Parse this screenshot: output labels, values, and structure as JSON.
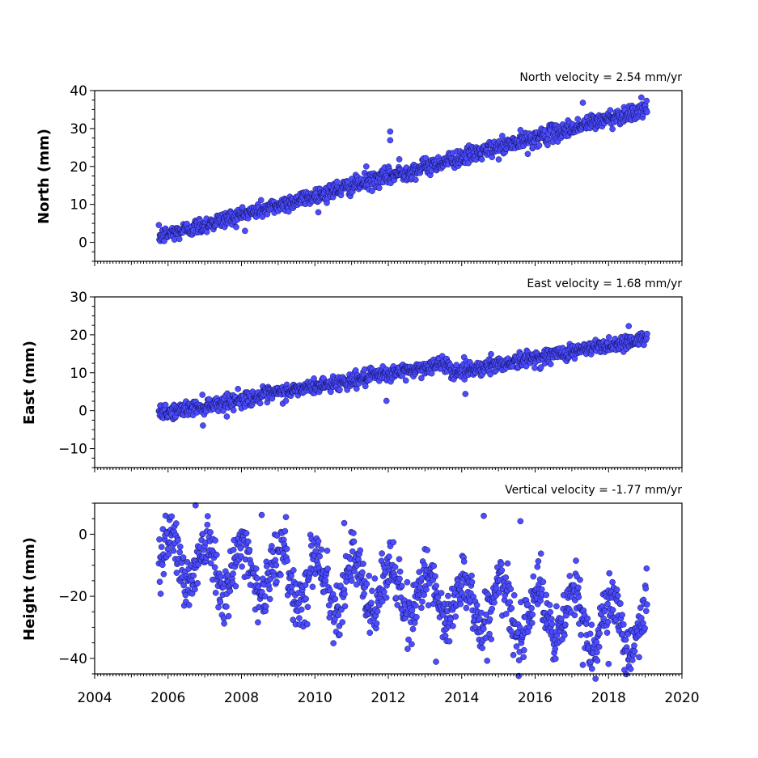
{
  "colors": {
    "marker": "#4c4cff",
    "marker_edge": "#000033",
    "axes": "#000000",
    "background": "#ffffff"
  },
  "chart_data": [
    {
      "type": "scatter",
      "title": "North velocity = 2.54 mm/yr",
      "ylabel": "North (mm)",
      "xlabel": "",
      "xlim": [
        2004,
        2020
      ],
      "ylim": [
        -5,
        40
      ],
      "yticks": [
        0,
        10,
        20,
        30,
        40
      ],
      "xticks": [
        2004,
        2006,
        2008,
        2010,
        2012,
        2014,
        2016,
        2018,
        2020
      ],
      "show_xtick_labels": false,
      "grid": false,
      "data_range": [
        2005.75,
        2019.05
      ],
      "trend": {
        "intercept_at_start": 1.5,
        "slope_mm_per_yr": 2.54
      },
      "scatter_sd": 1.1,
      "outliers": [
        [
          2012.05,
          29.2
        ],
        [
          2012.05,
          26.9
        ],
        [
          2017.3,
          36.8
        ],
        [
          2011.4,
          20.0
        ],
        [
          2010.6,
          16.0
        ],
        [
          2015.8,
          23.3
        ],
        [
          2012.3,
          21.9
        ]
      ],
      "marker_color": "#4c4cff"
    },
    {
      "type": "scatter",
      "title": "East velocity = 1.68 mm/yr",
      "ylabel": "East (mm)",
      "xlabel": "",
      "xlim": [
        2004,
        2020
      ],
      "ylim": [
        -15,
        30
      ],
      "yticks": [
        -10,
        0,
        10,
        20,
        30
      ],
      "xticks": [
        2004,
        2006,
        2008,
        2010,
        2012,
        2014,
        2016,
        2018,
        2020
      ],
      "show_xtick_labels": false,
      "grid": false,
      "data_range": [
        2005.75,
        2019.05
      ],
      "trend": {
        "intercept_at_start": -0.8,
        "slope_mm_per_yr": 1.68
      },
      "step": {
        "at": 2013.7,
        "offset": -2.5
      },
      "scatter_sd": 1.0,
      "outliers": [
        [
          2014.1,
          4.4
        ],
        [
          2011.95,
          2.6
        ],
        [
          2006.95,
          -3.9
        ],
        [
          2014.8,
          14.9
        ],
        [
          2018.55,
          22.3
        ]
      ],
      "marker_color": "#4c4cff"
    },
    {
      "type": "scatter",
      "title": "Vertical velocity = -1.77 mm/yr",
      "ylabel": "Height (mm)",
      "xlabel": "",
      "xlim": [
        2004,
        2020
      ],
      "ylim": [
        -45,
        10
      ],
      "yticks": [
        -40,
        -20,
        0
      ],
      "xticks": [
        2004,
        2006,
        2008,
        2010,
        2012,
        2014,
        2016,
        2018,
        2020
      ],
      "xtick_labels": [
        "2004",
        "2006",
        "2008",
        "2010",
        "2012",
        "2014",
        "2016",
        "2018",
        "2020"
      ],
      "show_xtick_labels": true,
      "grid": false,
      "data_range": [
        2005.75,
        2019.05
      ],
      "trend": {
        "intercept_at_start": -7,
        "slope_mm_per_yr": -1.77
      },
      "seasonal_amplitude": 8,
      "scatter_sd": 4.5,
      "outliers": [
        [
          2006.75,
          9.3
        ],
        [
          2008.55,
          6.2
        ],
        [
          2014.6,
          5.9
        ],
        [
          2015.6,
          4.2
        ],
        [
          2010.8,
          3.6
        ],
        [
          2013.3,
          -41.1
        ],
        [
          2017.3,
          -42.1
        ],
        [
          2018.0,
          -41.8
        ]
      ],
      "marker_color": "#4c4cff"
    }
  ]
}
